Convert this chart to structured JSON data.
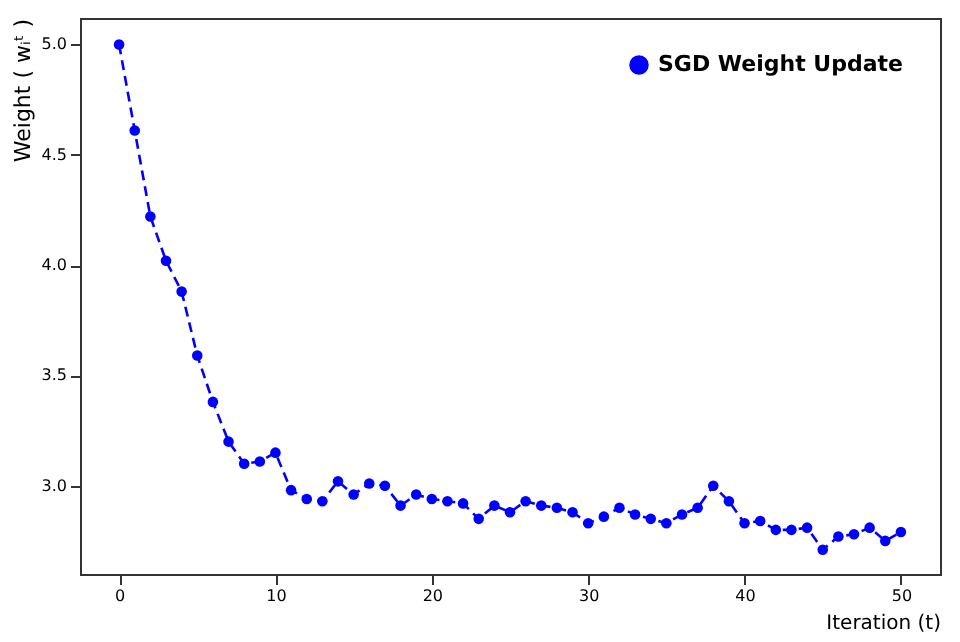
{
  "chart_data": {
    "type": "line",
    "xlabel": "Iteration (t)",
    "ylabel": "Weight ( wᵢᵗ )",
    "x": [
      0,
      1,
      2,
      3,
      4,
      5,
      6,
      7,
      8,
      9,
      10,
      11,
      12,
      13,
      14,
      15,
      16,
      17,
      18,
      19,
      20,
      21,
      22,
      23,
      24,
      25,
      26,
      27,
      28,
      29,
      30,
      31,
      32,
      33,
      34,
      35,
      36,
      37,
      38,
      39,
      40,
      41,
      42,
      43,
      44,
      45,
      46,
      47,
      48,
      49,
      50
    ],
    "series": [
      {
        "name": "SGD Weight Update",
        "color": "#0000ff",
        "values": [
          5.0,
          4.61,
          4.22,
          4.02,
          3.88,
          3.59,
          3.38,
          3.2,
          3.1,
          3.11,
          3.15,
          2.98,
          2.94,
          2.93,
          3.02,
          2.96,
          3.01,
          3.0,
          2.91,
          2.96,
          2.94,
          2.93,
          2.92,
          2.85,
          2.91,
          2.88,
          2.93,
          2.91,
          2.9,
          2.88,
          2.83,
          2.86,
          2.9,
          2.87,
          2.85,
          2.83,
          2.87,
          2.9,
          3.0,
          2.93,
          2.83,
          2.84,
          2.8,
          2.8,
          2.81,
          2.71,
          2.77,
          2.78,
          2.81,
          2.75,
          2.79
        ]
      }
    ],
    "xlim": [
      -2.5,
      52.5
    ],
    "xticks": [
      0,
      10,
      20,
      30,
      40,
      50
    ],
    "ylim": [
      2.6,
      5.12
    ],
    "yticks": [
      {
        "value": 3.0,
        "label": "3.0"
      },
      {
        "value": 3.5,
        "label": "3.5"
      },
      {
        "value": 4.0,
        "label": "4.0"
      },
      {
        "value": 4.5,
        "label": "4.5"
      },
      {
        "value": 5.0,
        "label": "5.0"
      }
    ],
    "marker": "circle",
    "line_style": "dashed",
    "legend": "top right",
    "grid": false
  }
}
